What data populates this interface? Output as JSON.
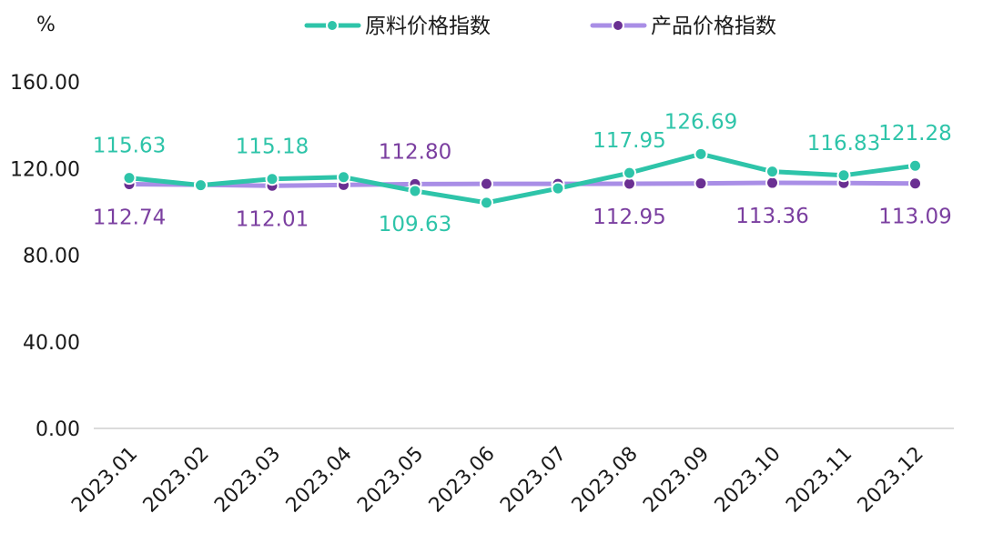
{
  "chart_data": {
    "type": "line",
    "unit_label": "%",
    "categories": [
      "2023.01",
      "2023.02",
      "2023.03",
      "2023.04",
      "2023.05",
      "2023.06",
      "2023.07",
      "2023.08",
      "2023.09",
      "2023.10",
      "2023.11",
      "2023.12"
    ],
    "ylim": [
      0,
      160
    ],
    "yticks": [
      "0.00",
      "40.00",
      "80.00",
      "120.00",
      "160.00"
    ],
    "grid": false,
    "legend_position": "top-center",
    "series": [
      {
        "name": "原料价格指数",
        "color": "#2ec4a9",
        "label_color": "#2ec4a9",
        "values": [
          115.63,
          112.3,
          115.18,
          116.0,
          109.63,
          104.2,
          110.8,
          117.95,
          126.69,
          118.6,
          116.83,
          121.28
        ],
        "labels": [
          "115.63",
          "",
          "115.18",
          "",
          "109.63",
          "",
          "",
          "117.95",
          "126.69",
          "",
          "116.83",
          "121.28"
        ],
        "label_side": [
          "above",
          "",
          "above",
          "",
          "below",
          "",
          "",
          "above",
          "above",
          "",
          "above",
          "above"
        ]
      },
      {
        "name": "产品价格指数",
        "color": "#a98ee6",
        "label_color": "#7b3fa0",
        "marker_color": "#6a2f92",
        "values": [
          112.74,
          112.5,
          112.01,
          112.4,
          112.8,
          112.9,
          112.9,
          112.95,
          113.1,
          113.36,
          113.3,
          113.09
        ],
        "labels": [
          "112.74",
          "",
          "112.01",
          "",
          "112.80",
          "",
          "",
          "112.95",
          "",
          "113.36",
          "",
          "113.09"
        ],
        "label_side": [
          "below",
          "",
          "below",
          "",
          "above",
          "",
          "",
          "below",
          "",
          "below",
          "",
          "below"
        ]
      }
    ]
  }
}
